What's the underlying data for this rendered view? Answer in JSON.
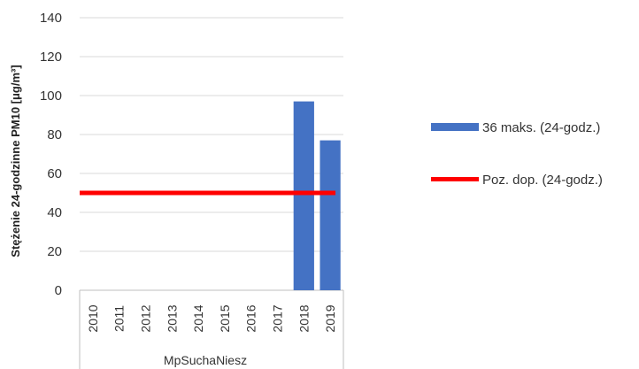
{
  "chart_data": {
    "type": "bar",
    "categories": [
      "2010",
      "2011",
      "2012",
      "2013",
      "2014",
      "2015",
      "2016",
      "2017",
      "2018",
      "2019"
    ],
    "group_label": "MpSuchaNiesz",
    "series": [
      {
        "name": "36 maks. (24-godz.)",
        "kind": "bar",
        "color": "#4472C4",
        "values": [
          null,
          null,
          null,
          null,
          null,
          null,
          null,
          null,
          97,
          77
        ]
      },
      {
        "name": "Poz. dop. (24-godz.)",
        "kind": "line",
        "color": "#FF0000",
        "values": [
          50,
          50,
          50,
          50,
          50,
          50,
          50,
          50,
          50,
          50
        ]
      }
    ],
    "ylabel": "Stężenie 24-godzinne PM10 [μg/m³]",
    "ylim": [
      0,
      140
    ],
    "yticks": [
      0,
      20,
      40,
      60,
      80,
      100,
      120,
      140
    ],
    "grid": true,
    "legend_position": "right"
  }
}
